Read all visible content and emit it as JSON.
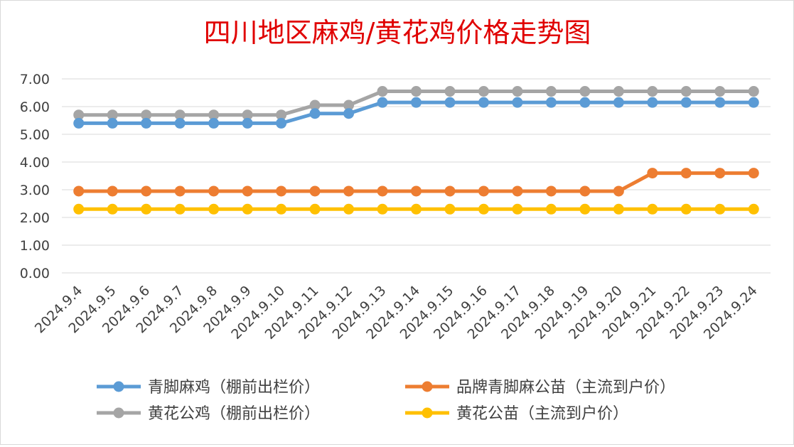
{
  "chart_data": {
    "type": "line",
    "title": "四川地区麻鸡/黄花鸡价格走势图",
    "xlabel": "",
    "ylabel": "",
    "ylim": [
      0,
      7
    ],
    "ytick_labels": [
      "0.00",
      "1.00",
      "2.00",
      "3.00",
      "4.00",
      "5.00",
      "6.00",
      "7.00"
    ],
    "categories": [
      "2024.9.4",
      "2024.9.5",
      "2024.9.6",
      "2024.9.7",
      "2024.9.8",
      "2024.9.9",
      "2024.9.10",
      "2024.9.11",
      "2024.9.12",
      "2024.9.13",
      "2024.9.14",
      "2024.9.15",
      "2024.9.16",
      "2024.9.17",
      "2024.9.18",
      "2024.9.19",
      "2024.9.20",
      "2024.9.21",
      "2024.9.22",
      "2024.9.23",
      "2024.9.24"
    ],
    "series": [
      {
        "name": "青脚麻鸡（棚前出栏价）",
        "color": "#5b9bd5",
        "values": [
          5.4,
          5.4,
          5.4,
          5.4,
          5.4,
          5.4,
          5.4,
          5.75,
          5.75,
          6.15,
          6.15,
          6.15,
          6.15,
          6.15,
          6.15,
          6.15,
          6.15,
          6.15,
          6.15,
          6.15,
          6.15
        ]
      },
      {
        "name": "品牌青脚麻公苗（主流到户价）",
        "color": "#ed7d31",
        "values": [
          2.95,
          2.95,
          2.95,
          2.95,
          2.95,
          2.95,
          2.95,
          2.95,
          2.95,
          2.95,
          2.95,
          2.95,
          2.95,
          2.95,
          2.95,
          2.95,
          2.95,
          3.6,
          3.6,
          3.6,
          3.6
        ]
      },
      {
        "name": "黄花公鸡（棚前出栏价）",
        "color": "#a5a5a5",
        "values": [
          5.7,
          5.7,
          5.7,
          5.7,
          5.7,
          5.7,
          5.7,
          6.05,
          6.05,
          6.55,
          6.55,
          6.55,
          6.55,
          6.55,
          6.55,
          6.55,
          6.55,
          6.55,
          6.55,
          6.55,
          6.55
        ]
      },
      {
        "name": "黄花公苗（主流到户价）",
        "color": "#ffc000",
        "values": [
          2.3,
          2.3,
          2.3,
          2.3,
          2.3,
          2.3,
          2.3,
          2.3,
          2.3,
          2.3,
          2.3,
          2.3,
          2.3,
          2.3,
          2.3,
          2.3,
          2.3,
          2.3,
          2.3,
          2.3,
          2.3
        ]
      }
    ],
    "grid": true,
    "legend_position": "bottom",
    "title_color": "#e00000"
  }
}
